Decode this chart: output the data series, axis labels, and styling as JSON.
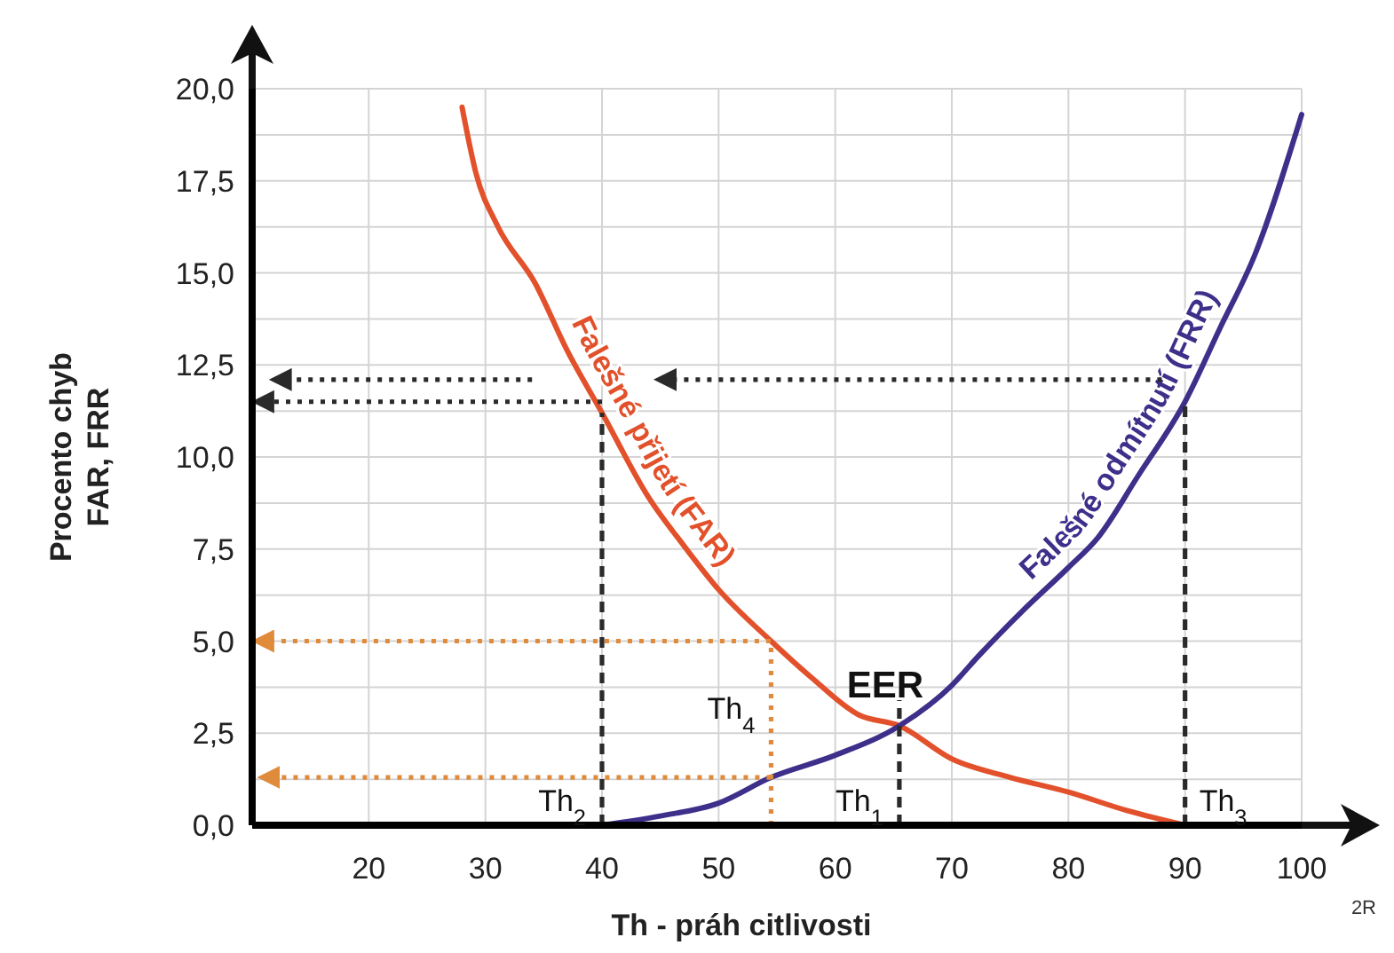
{
  "chart_data": {
    "type": "line",
    "xlabel": "Th - práh citlivosti",
    "ylabel": "Procento chyb\nFAR, FRR",
    "xlim": [
      10,
      100
    ],
    "xticks": [
      20,
      30,
      40,
      50,
      60,
      70,
      80,
      90,
      100
    ],
    "ylim": [
      0,
      20
    ],
    "yticks": [
      {
        "value": 0,
        "label": "0,0"
      },
      {
        "value": 1.25,
        "label": null
      },
      {
        "value": 2.5,
        "label": "2,5"
      },
      {
        "value": 3.75,
        "label": null
      },
      {
        "value": 5,
        "label": "5,0"
      },
      {
        "value": 6.25,
        "label": null
      },
      {
        "value": 7.5,
        "label": "7,5"
      },
      {
        "value": 8.75,
        "label": null
      },
      {
        "value": 10,
        "label": "10,0"
      },
      {
        "value": 11.25,
        "label": null
      },
      {
        "value": 12.5,
        "label": "12,5"
      },
      {
        "value": 13.75,
        "label": null
      },
      {
        "value": 15,
        "label": "15,0"
      },
      {
        "value": 16.25,
        "label": null
      },
      {
        "value": 17.5,
        "label": "17,5"
      },
      {
        "value": 18.75,
        "label": null
      },
      {
        "value": 20,
        "label": "20,0"
      }
    ],
    "grid": true,
    "series": [
      {
        "name": "Falešné přijetí (FAR)",
        "color": "#e2512b",
        "line_style": "solid",
        "x": [
          28,
          29.2,
          31,
          34.3,
          37,
          40,
          44,
          47,
          50,
          54.5,
          58,
          62,
          65.5,
          70,
          75,
          80,
          85,
          90
        ],
        "values": [
          19.5,
          17.7,
          16.3,
          14.7,
          12.9,
          11.2,
          8.9,
          7.6,
          6.4,
          5.0,
          4.0,
          3.0,
          2.7,
          1.8,
          1.3,
          0.9,
          0.4,
          0
        ]
      },
      {
        "name": "Falešné odmítnutí (FRR)",
        "color": "#3d2f8a",
        "line_style": "solid",
        "x": [
          40,
          45,
          50,
          54.5,
          60,
          65.5,
          70,
          72.3,
          76,
          80,
          82.5,
          86,
          90,
          93,
          96,
          100
        ],
        "values": [
          0,
          0.25,
          0.6,
          1.3,
          1.9,
          2.7,
          3.8,
          4.6,
          5.8,
          7.0,
          7.8,
          9.5,
          11.5,
          13.5,
          15.5,
          19.3
        ]
      },
      {
        "color": "#2a2a2a",
        "line_style": "dashed",
        "x": [
          40,
          40
        ],
        "values": [
          0,
          11.2
        ]
      },
      {
        "color": "#2a2a2a",
        "line_style": "dashed",
        "x": [
          90,
          90
        ],
        "values": [
          0,
          11.5
        ]
      },
      {
        "color": "#2a2a2a",
        "line_style": "dashed",
        "x": [
          65.5,
          65.5
        ],
        "values": [
          0,
          3.4
        ]
      },
      {
        "color": "#2a2a2a",
        "line_style": "dotted",
        "x": [
          40,
          11.5
        ],
        "values": [
          11.5,
          11.5
        ]
      },
      {
        "color": "#2a2a2a",
        "line_style": "dotted",
        "x": [
          34,
          13
        ],
        "values": [
          12.1,
          12.1
        ]
      },
      {
        "color": "#2a2a2a",
        "line_style": "dotted",
        "x": [
          88,
          46
        ],
        "values": [
          12.1,
          12.1
        ]
      },
      {
        "color": "#e08a3c",
        "line_style": "dotted",
        "x": [
          54.5,
          54.5,
          11.5
        ],
        "values": [
          0,
          5,
          5
        ]
      },
      {
        "color": "#e08a3c",
        "line_style": "dotted",
        "x": [
          54.5,
          12
        ],
        "values": [
          1.3,
          1.3
        ]
      }
    ],
    "annotations": [
      {
        "text": "EER",
        "x": 65.5,
        "y": 2.7
      },
      {
        "text": "Th$_{2}$",
        "x": 40,
        "y": 0
      },
      {
        "text": "Th$_{4}$",
        "x": 54.5,
        "y": 2.5
      },
      {
        "text": "Th$_{1}$",
        "x": 65.5,
        "y": 0
      },
      {
        "text": "Th$_{3}$",
        "x": 90,
        "y": 0
      },
      "2R"
    ]
  }
}
